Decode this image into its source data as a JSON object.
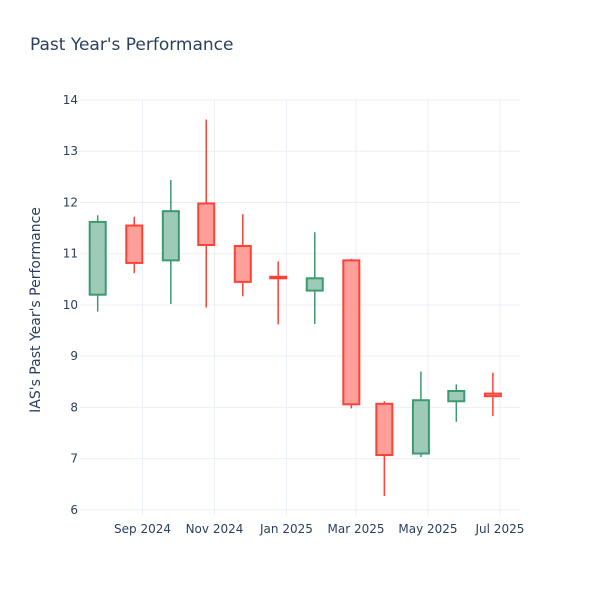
{
  "chart_data": {
    "type": "candlestick",
    "title": "Past Year's Performance",
    "ylabel": "IAS's Past Year's Performance",
    "xlabel": "",
    "ylim": [
      5.9,
      14
    ],
    "xlim": [
      "2024-07-10",
      "2025-07-18"
    ],
    "yticks": [
      6,
      7,
      8,
      9,
      10,
      11,
      12,
      13,
      14
    ],
    "xticks": [
      {
        "date": "2024-09-01",
        "label": "Sep 2024"
      },
      {
        "date": "2024-11-01",
        "label": "Nov 2024"
      },
      {
        "date": "2025-01-01",
        "label": "Jan 2025"
      },
      {
        "date": "2025-03-01",
        "label": "Mar 2025"
      },
      {
        "date": "2025-05-01",
        "label": "May 2025"
      },
      {
        "date": "2025-07-01",
        "label": "Jul 2025"
      }
    ],
    "grid": true,
    "increasing_color": "#3d9970",
    "increasing_fill": "#9ecbb8",
    "decreasing_color": "#ff4136",
    "decreasing_fill": "#ff9f9a",
    "candles": [
      {
        "date": "2024-07-25",
        "open": 10.2,
        "high": 11.75,
        "low": 9.87,
        "close": 11.62
      },
      {
        "date": "2024-08-25",
        "open": 11.55,
        "high": 11.72,
        "low": 10.62,
        "close": 10.82
      },
      {
        "date": "2024-09-25",
        "open": 10.87,
        "high": 12.44,
        "low": 10.02,
        "close": 11.83
      },
      {
        "date": "2024-10-25",
        "open": 11.98,
        "high": 13.62,
        "low": 9.95,
        "close": 11.17
      },
      {
        "date": "2024-11-25",
        "open": 11.15,
        "high": 11.77,
        "low": 10.17,
        "close": 10.45
      },
      {
        "date": "2024-12-25",
        "open": 10.55,
        "high": 10.85,
        "low": 9.62,
        "close": 10.52
      },
      {
        "date": "2025-01-25",
        "open": 10.28,
        "high": 11.42,
        "low": 9.63,
        "close": 10.52
      },
      {
        "date": "2025-02-25",
        "open": 10.87,
        "high": 10.9,
        "low": 7.98,
        "close": 8.06
      },
      {
        "date": "2025-03-25",
        "open": 8.07,
        "high": 8.12,
        "low": 6.27,
        "close": 7.07
      },
      {
        "date": "2025-04-25",
        "open": 7.1,
        "high": 8.7,
        "low": 7.03,
        "close": 8.14
      },
      {
        "date": "2025-05-25",
        "open": 8.12,
        "high": 8.45,
        "low": 7.72,
        "close": 8.32
      },
      {
        "date": "2025-06-25",
        "open": 8.27,
        "high": 8.68,
        "low": 7.83,
        "close": 8.22
      }
    ]
  }
}
